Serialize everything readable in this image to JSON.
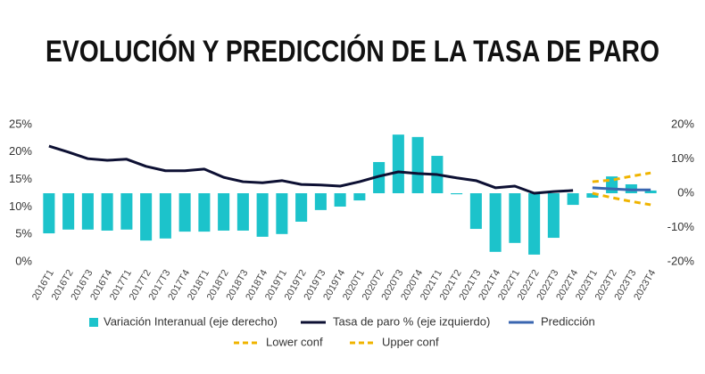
{
  "chart_data": {
    "type": "bar",
    "title": "EVOLUCIÓN Y PREDICCIÓN DE LA TASA DE PARO",
    "categories": [
      "2016T1",
      "2016T2",
      "2016T3",
      "2016T4",
      "2017T1",
      "2017T2",
      "2017T3",
      "2017T4",
      "2018T1",
      "2018T2",
      "2018T3",
      "2018T4",
      "2019T1",
      "2019T2",
      "2019T3",
      "2019T4",
      "2020T1",
      "2020T2",
      "2020T3",
      "2020T4",
      "2021T1",
      "2021T2",
      "2021T3",
      "2021T4",
      "2022T1",
      "2022T2",
      "2022T3",
      "2022T4",
      "2023T1",
      "2023T2",
      "2023T3",
      "2023T4"
    ],
    "ylim": [
      0,
      25
    ],
    "yticks": [
      {
        "value": 0,
        "label": "0%"
      },
      {
        "value": 5,
        "label": "5%"
      },
      {
        "value": 10,
        "label": "10%"
      },
      {
        "value": 15,
        "label": "15%"
      },
      {
        "value": 20,
        "label": "20%"
      },
      {
        "value": 25,
        "label": "25%"
      }
    ],
    "y2lim": [
      -20,
      20
    ],
    "y2ticks": [
      {
        "value": -20,
        "label": "-20%"
      },
      {
        "value": -10,
        "label": "-10%"
      },
      {
        "value": 0,
        "label": "0%"
      },
      {
        "value": 10,
        "label": "10%"
      },
      {
        "value": 20,
        "label": "20%"
      }
    ],
    "grid": false,
    "series": [
      {
        "name": "Variación Interanual (eje derecho)",
        "type": "bar",
        "axis": "y2",
        "color": "#1cc3cb",
        "values": [
          -11.7,
          -10.6,
          -10.6,
          -10.9,
          -10.6,
          -13.8,
          -13.2,
          -11.2,
          -11.2,
          -10.9,
          -10.9,
          -12.7,
          -11.9,
          -8.3,
          -4.9,
          -3.9,
          -2.1,
          9.1,
          17.1,
          16.4,
          10.9,
          -0.3,
          -10.4,
          -17.1,
          -14.5,
          -17.9,
          -13.0,
          -3.4,
          -1.3,
          4.9,
          2.6,
          0.8
        ]
      },
      {
        "name": "Tasa de paro % (eje izquierdo)",
        "type": "line",
        "color": "#0d1033",
        "values": [
          21.1,
          20.0,
          18.8,
          18.5,
          18.7,
          17.4,
          16.6,
          16.6,
          16.9,
          15.4,
          14.6,
          14.4,
          14.8,
          14.1,
          14.0,
          13.8,
          14.6,
          15.6,
          16.4,
          16.1,
          15.9,
          15.3,
          14.8,
          13.5,
          13.8,
          12.5,
          12.8,
          13.0,
          null,
          null,
          null,
          null
        ]
      },
      {
        "name": "Predicción",
        "type": "line",
        "color": "#3a66b0",
        "values": [
          null,
          null,
          null,
          null,
          null,
          null,
          null,
          null,
          null,
          null,
          null,
          null,
          null,
          null,
          null,
          null,
          null,
          null,
          null,
          null,
          null,
          null,
          null,
          null,
          null,
          null,
          null,
          null,
          13.5,
          13.3,
          13.1,
          13.1
        ]
      },
      {
        "name": "Lower conf",
        "type": "line",
        "dash": true,
        "color": "#f0b400",
        "values": [
          null,
          null,
          null,
          null,
          null,
          null,
          null,
          null,
          null,
          null,
          null,
          null,
          null,
          null,
          null,
          null,
          null,
          null,
          null,
          null,
          null,
          null,
          null,
          null,
          null,
          null,
          null,
          null,
          12.5,
          11.7,
          11.0,
          10.4
        ]
      },
      {
        "name": "Upper conf",
        "type": "line",
        "dash": true,
        "color": "#f0b400",
        "values": [
          null,
          null,
          null,
          null,
          null,
          null,
          null,
          null,
          null,
          null,
          null,
          null,
          null,
          null,
          null,
          null,
          null,
          null,
          null,
          null,
          null,
          null,
          null,
          null,
          null,
          null,
          null,
          null,
          14.6,
          14.9,
          15.6,
          16.2
        ]
      }
    ]
  }
}
